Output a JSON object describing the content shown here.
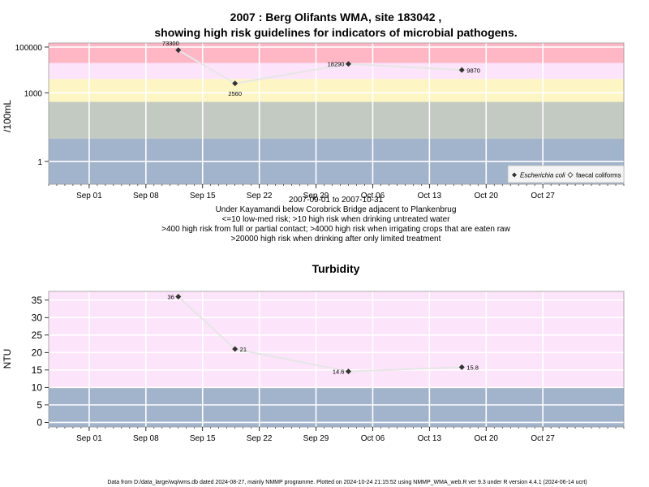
{
  "chart_data": [
    {
      "type": "line",
      "title": [
        "2007 : Berg Olifants WMA, site 183042 ,",
        "showing high risk guidelines for indicators of microbial pathogens."
      ],
      "xlabel": "",
      "ylabel": "/100mL",
      "y_scale": "log10",
      "ylim": [
        0.1,
        150000
      ],
      "y_ticks": [
        1,
        1000,
        100000
      ],
      "y_tick_labels": [
        "1",
        "1000",
        "100000"
      ],
      "xlim": [
        "2007-08-27",
        "2007-11-06"
      ],
      "x_ticks": [
        "2007-09-01",
        "2007-09-08",
        "2007-09-15",
        "2007-09-22",
        "2007-09-29",
        "2007-10-06",
        "2007-10-13",
        "2007-10-20",
        "2007-10-27"
      ],
      "x_tick_labels": [
        "Sep 01",
        "Sep 08",
        "Sep 15",
        "Sep 22",
        "Sep 29",
        "Oct 06",
        "Oct 13",
        "Oct 20",
        "Oct 27"
      ],
      "grid": true,
      "bands": [
        {
          "from": 0.1,
          "to": 10,
          "color": "#a2b3cc"
        },
        {
          "from": 10,
          "to": 400,
          "color": "#c3cac1"
        },
        {
          "from": 400,
          "to": 4000,
          "color": "#fdf6c4"
        },
        {
          "from": 4000,
          "to": 20000,
          "color": "#fce4fa"
        },
        {
          "from": 20000,
          "to": 150000,
          "color": "#ffb7c6"
        }
      ],
      "series": [
        {
          "name": "Escherichia coli",
          "marker": "filled-diamond",
          "color": "#333333",
          "line_color": "#e6e6e6",
          "points": [
            {
              "x": "2007-09-12",
              "y": 73300,
              "label": "73300"
            },
            {
              "x": "2007-09-19",
              "y": 2560,
              "label": "2560"
            },
            {
              "x": "2007-10-03",
              "y": 18290,
              "label": "18290"
            },
            {
              "x": "2007-10-17",
              "y": 9870,
              "label": "9870"
            }
          ]
        }
      ],
      "legend": {
        "position": "bottom-right",
        "entries": [
          {
            "label": "Escherichia coli",
            "marker": "filled-diamond",
            "italic": true
          },
          {
            "label": "faecal coliforms",
            "marker": "open-diamond",
            "italic": false
          }
        ]
      },
      "annotations": [
        "2007-09-01 to 2007-10-31",
        "Under Kayamandi below Corobrick Bridge adjacent to Plankenbrug",
        "<=10 low-med risk; >10 high risk when drinking untreated water",
        ">400 high risk from full or partial contact; >4000 high risk when irrigating crops that are eaten raw",
        ">20000 high risk when drinking after only limited treatment"
      ]
    },
    {
      "type": "line",
      "title": "Turbidity",
      "xlabel": "",
      "ylabel": "NTU",
      "ylim": [
        -1.3,
        37.5
      ],
      "y_ticks": [
        0,
        5,
        10,
        15,
        20,
        25,
        30,
        35
      ],
      "y_tick_labels": [
        "0",
        "5",
        "10",
        "15",
        "20",
        "25",
        "30",
        "35"
      ],
      "xlim": [
        "2007-08-27",
        "2007-11-06"
      ],
      "x_ticks": [
        "2007-09-01",
        "2007-09-08",
        "2007-09-15",
        "2007-09-22",
        "2007-09-29",
        "2007-10-06",
        "2007-10-13",
        "2007-10-20",
        "2007-10-27"
      ],
      "x_tick_labels": [
        "Sep 01",
        "Sep 08",
        "Sep 15",
        "Sep 22",
        "Sep 29",
        "Oct 06",
        "Oct 13",
        "Oct 20",
        "Oct 27"
      ],
      "grid": true,
      "bands": [
        {
          "from": -1.3,
          "to": 10,
          "color": "#a2b3cc"
        },
        {
          "from": 10,
          "to": 37.5,
          "color": "#fce4fa"
        }
      ],
      "series": [
        {
          "marker": "filled-diamond",
          "color": "#333333",
          "line_color": "#e6e6e6",
          "points": [
            {
              "x": "2007-09-12",
              "y": 36,
              "label": "36"
            },
            {
              "x": "2007-09-19",
              "y": 21,
              "label": "21"
            },
            {
              "x": "2007-10-03",
              "y": 14.6,
              "label": "14.6"
            },
            {
              "x": "2007-10-17",
              "y": 15.8,
              "label": "15.8"
            }
          ]
        }
      ]
    }
  ],
  "footer": "Data from D:/data_large/wq/wms.db dated 2024-08-27, mainly NMMP programme. Plotted on 2024-10-24 21:15:52 using NMMP_WMA_web.R ver 9.3 under R version 4.4.1 (2024-06-14 ucrt)"
}
